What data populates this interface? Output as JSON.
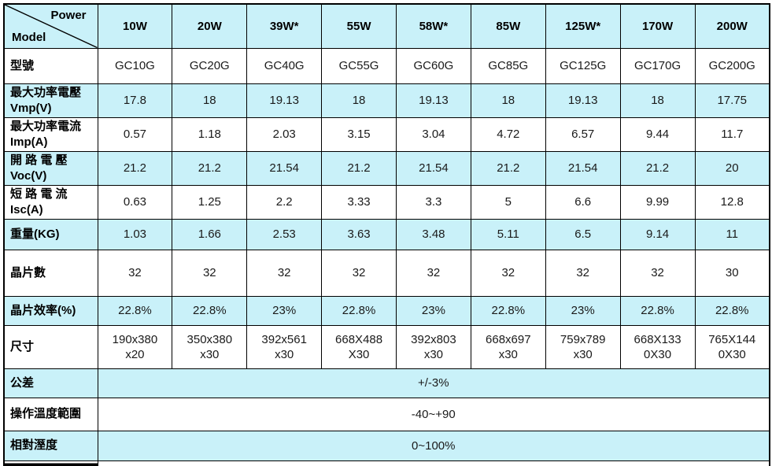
{
  "table": {
    "corner": {
      "top_label": "Power",
      "bottom_label": "Model"
    },
    "columns": [
      "10W",
      "20W",
      "39W*",
      "55W",
      "58W*",
      "85W",
      "125W*",
      "170W",
      "200W"
    ],
    "rows": [
      {
        "label": "型號",
        "shaded": false,
        "values": [
          "GC10G",
          "GC20G",
          "GC40G",
          "GC55G",
          "GC60G",
          "GC85G",
          "GC125G",
          "GC170G",
          "GC200G"
        ]
      },
      {
        "label": "最大功率電壓\nVmp(V)",
        "shaded": true,
        "values": [
          "17.8",
          "18",
          "19.13",
          "18",
          "19.13",
          "18",
          "19.13",
          "18",
          "17.75"
        ]
      },
      {
        "label": "最大功率電流\nImp(A)",
        "shaded": false,
        "values": [
          "0.57",
          "1.18",
          "2.03",
          "3.15",
          "3.04",
          "4.72",
          "6.57",
          "9.44",
          "11.7"
        ]
      },
      {
        "label": "開 路 電 壓\nVoc(V)",
        "shaded": true,
        "values": [
          "21.2",
          "21.2",
          "21.54",
          "21.2",
          "21.54",
          "21.2",
          "21.54",
          "21.2",
          "20"
        ]
      },
      {
        "label": "短 路 電 流\nIsc(A)",
        "shaded": false,
        "values": [
          "0.63",
          "1.25",
          "2.2",
          "3.33",
          "3.3",
          "5",
          "6.6",
          "9.99",
          "12.8"
        ]
      },
      {
        "label": "重量(KG)",
        "shaded": true,
        "values": [
          "1.03",
          "1.66",
          "2.53",
          "3.63",
          "3.48",
          "5.11",
          "6.5",
          "9.14",
          "11"
        ]
      },
      {
        "label": "晶片數",
        "shaded": false,
        "values": [
          "32",
          "32",
          "32",
          "32",
          "32",
          "32",
          "32",
          "32",
          "30"
        ]
      },
      {
        "label": "晶片效率(%)",
        "shaded": true,
        "values": [
          "22.8%",
          "22.8%",
          "23%",
          "22.8%",
          "23%",
          "22.8%",
          "23%",
          "22.8%",
          "22.8%"
        ]
      },
      {
        "label": "尺寸",
        "shaded": false,
        "values": [
          "190x380\nx20",
          "350x380\nx30",
          "392x561\nx30",
          "668X488\nX30",
          "392x803\nx30",
          "668x697\nx30",
          "759x789\nx30",
          "668X133\n0X30",
          "765X144\n0X30"
        ]
      },
      {
        "label": "公差",
        "shaded": true,
        "merged_value": "+/-3%"
      },
      {
        "label": "操作溫度範圍",
        "shaded": false,
        "merged_value": "-40~+90"
      },
      {
        "label": "相對溼度",
        "shaded": true,
        "merged_value": "0~100%"
      }
    ],
    "colors": {
      "row_shade": "#c9f1f9",
      "border": "#000000",
      "text": "#1a1a1a"
    }
  }
}
